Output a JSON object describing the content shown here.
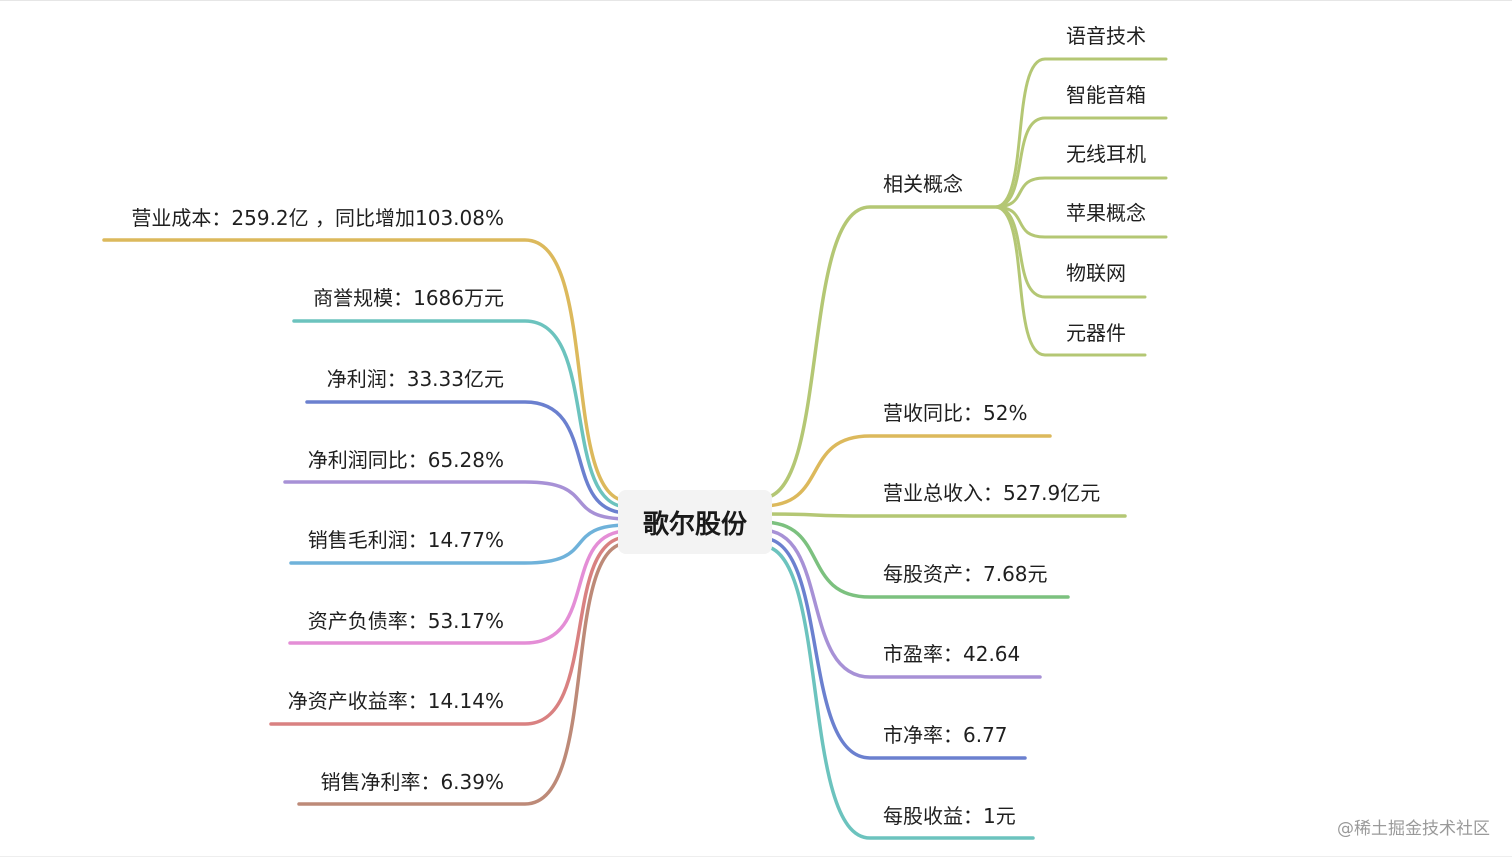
{
  "root": {
    "label": "歌尔股份"
  },
  "colors": {
    "yellow": "#dcb95c",
    "teal": "#6cc3be",
    "blue": "#6b80cf",
    "purple": "#a791d6",
    "sky": "#6fb2da",
    "pink": "#e48ed6",
    "red": "#d98181",
    "brown": "#bd8a78",
    "olive": "#b4c774",
    "green": "#7cc17f"
  },
  "left_nodes": [
    {
      "label": "营业成本：259.2亿 ，同比增加103.08%",
      "color": "#dcb95c"
    },
    {
      "label": "商誉规模：1686万元",
      "color": "#6cc3be"
    },
    {
      "label": "净利润：33.33亿元",
      "color": "#6b80cf"
    },
    {
      "label": "净利润同比：65.28%",
      "color": "#a791d6"
    },
    {
      "label": "销售毛利润：14.77%",
      "color": "#6fb2da"
    },
    {
      "label": "资产负债率：53.17%",
      "color": "#e48ed6"
    },
    {
      "label": "净资产收益率：14.14%",
      "color": "#d98181"
    },
    {
      "label": "销售净利率：6.39%",
      "color": "#bd8a78"
    }
  ],
  "right_nodes": [
    {
      "label": "相关概念",
      "color": "#b4c774",
      "children": [
        {
          "label": "语音技术"
        },
        {
          "label": "智能音箱"
        },
        {
          "label": "无线耳机"
        },
        {
          "label": "苹果概念"
        },
        {
          "label": "物联网"
        },
        {
          "label": "元器件"
        }
      ]
    },
    {
      "label": "营收同比：52%",
      "color": "#dcb95c"
    },
    {
      "label": "营业总收入：527.9亿元",
      "color": "#b4c774"
    },
    {
      "label": "每股资产：7.68元",
      "color": "#7cc17f"
    },
    {
      "label": "市盈率：42.64",
      "color": "#a791d6"
    },
    {
      "label": "市净率：6.77",
      "color": "#6b80cf"
    },
    {
      "label": "每股收益：1元",
      "color": "#6cc3be"
    }
  ],
  "watermark": "@稀土掘金技术社区"
}
